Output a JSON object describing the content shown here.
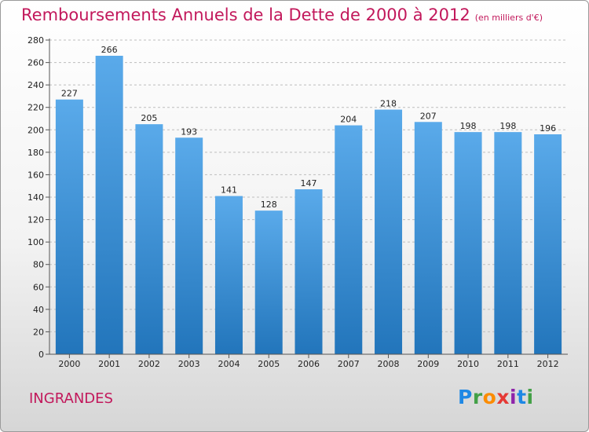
{
  "header": {
    "title": "Remboursements Annuels de la Dette de 2000 à 2012",
    "unit": "(en milliers d'€)"
  },
  "footer": {
    "commune": "INGRANDES",
    "brand": "Proxiti"
  },
  "colors": {
    "title": "#c2185b",
    "bar_top": "#5aaaea",
    "bar_bottom": "#2275bb",
    "grid": "#bdbdbd"
  },
  "chart_data": {
    "type": "bar",
    "title": "Remboursements Annuels de la Dette de 2000 à 2012",
    "subtitle": "(en milliers d'€)",
    "xlabel": "",
    "ylabel": "",
    "categories": [
      "2000",
      "2001",
      "2002",
      "2003",
      "2004",
      "2005",
      "2006",
      "2007",
      "2008",
      "2009",
      "2010",
      "2011",
      "2012"
    ],
    "values": [
      227,
      266,
      205,
      193,
      141,
      128,
      147,
      204,
      218,
      207,
      198,
      198,
      196
    ],
    "ylim": [
      0,
      280
    ],
    "yticks": [
      0,
      20,
      40,
      60,
      80,
      100,
      120,
      140,
      160,
      180,
      200,
      220,
      240,
      260,
      280
    ],
    "grid": true,
    "legend": "none"
  }
}
